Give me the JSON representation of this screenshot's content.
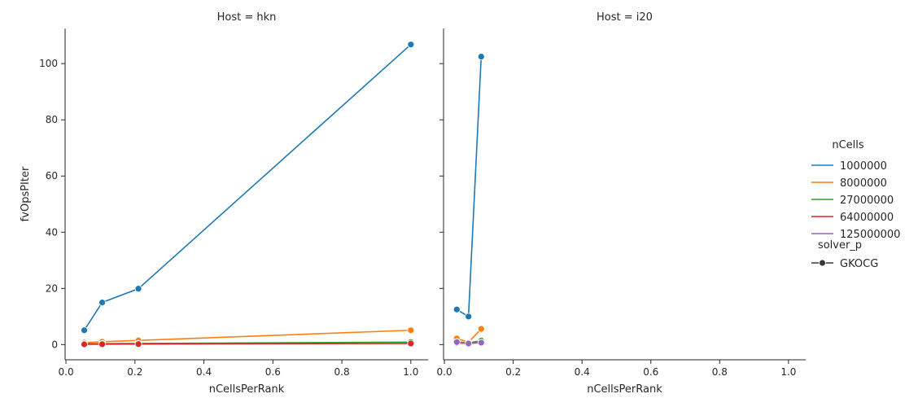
{
  "chart_data": {
    "type": "line",
    "ylabel": "fvOpsPIter",
    "legend": {
      "placement": "right",
      "hue_title": "nCells",
      "style_title": "solver_p",
      "style_entries": [
        {
          "label": "GKOCG",
          "marker": "circle"
        }
      ]
    },
    "panels": [
      {
        "title": "Host = hkn",
        "xlabel": "nCellsPerRank",
        "xlim": [
          -0.0025,
          1.05
        ],
        "ylim": [
          -5.4,
          112.5
        ],
        "xticks": [
          0.0,
          0.2,
          0.4,
          0.6,
          0.8,
          1.0
        ],
        "xtick_labels": [
          "0.0",
          "0.2",
          "0.4",
          "0.6",
          "0.8",
          "1.0"
        ],
        "yticks": [
          0,
          20,
          40,
          60,
          80,
          100
        ],
        "ytick_labels": [
          "0",
          "20",
          "40",
          "60",
          "80",
          "100"
        ],
        "series": [
          {
            "name": "1000000",
            "color": "#1f77b4",
            "x": [
              0.053,
              0.105,
              0.21,
              1.0
            ],
            "y": [
              5.1,
              15.0,
              19.9,
              106.8
            ]
          },
          {
            "name": "8000000",
            "color": "#ff7f0e",
            "x": [
              0.053,
              0.105,
              0.21,
              1.0
            ],
            "y": [
              0.7,
              1.0,
              1.5,
              5.1
            ]
          },
          {
            "name": "27000000",
            "color": "#2ca02c",
            "x": [
              0.053,
              0.105,
              0.21,
              1.0
            ],
            "y": [
              0.3,
              0.35,
              0.4,
              0.9
            ]
          },
          {
            "name": "64000000",
            "color": "#d62728",
            "x": [
              0.053,
              0.105,
              0.21,
              1.0
            ],
            "y": [
              0.1,
              0.15,
              0.2,
              0.4
            ]
          }
        ]
      },
      {
        "title": "Host = i20",
        "xlabel": "nCellsPerRank",
        "xlim": [
          -0.0025,
          1.05
        ],
        "ylim": [
          -5.4,
          112.5
        ],
        "xticks": [
          0.0,
          0.2,
          0.4,
          0.6,
          0.8,
          1.0
        ],
        "xtick_labels": [
          "0.0",
          "0.2",
          "0.4",
          "0.6",
          "0.8",
          "1.0"
        ],
        "yticks": [
          0,
          20,
          40,
          60,
          80,
          100
        ],
        "ytick_labels": [
          "",
          "",
          "",
          "",
          "",
          ""
        ],
        "series": [
          {
            "name": "1000000",
            "color": "#1f77b4",
            "x": [
              0.036,
              0.07,
              0.107
            ],
            "y": [
              12.5,
              10.0,
              102.5
            ]
          },
          {
            "name": "8000000",
            "color": "#ff7f0e",
            "x": [
              0.036,
              0.07,
              0.107
            ],
            "y": [
              2.2,
              0.8,
              5.6
            ]
          },
          {
            "name": "27000000",
            "color": "#2ca02c",
            "x": [
              0.036,
              0.07,
              0.107
            ],
            "y": [
              1.0,
              0.6,
              1.4
            ]
          },
          {
            "name": "64000000",
            "color": "#d62728",
            "x": [
              0.036,
              0.07,
              0.107
            ],
            "y": [
              0.6,
              0.4,
              0.8
            ]
          },
          {
            "name": "125000000",
            "color": "#9467bd",
            "x": [
              0.036,
              0.07,
              0.107
            ],
            "y": [
              0.9,
              0.4,
              0.7
            ]
          }
        ]
      }
    ],
    "hue_entries": [
      {
        "name": "1000000",
        "color": "#1f77b4"
      },
      {
        "name": "8000000",
        "color": "#ff7f0e"
      },
      {
        "name": "27000000",
        "color": "#2ca02c"
      },
      {
        "name": "64000000",
        "color": "#d62728"
      },
      {
        "name": "125000000",
        "color": "#9467bd"
      }
    ]
  }
}
